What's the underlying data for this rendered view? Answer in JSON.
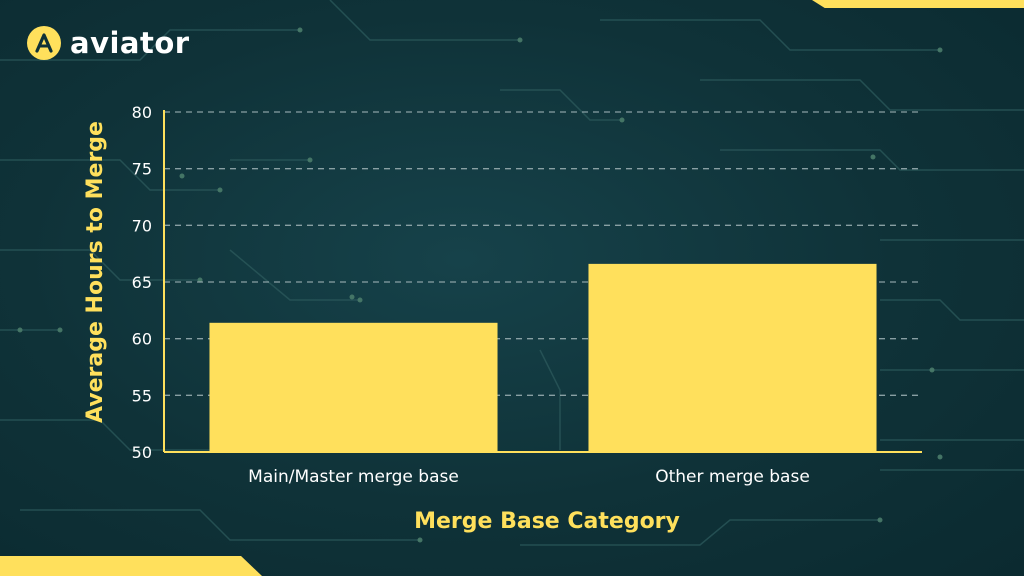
{
  "brand": {
    "name": "aviator",
    "accent": "#ffe05c",
    "background": "#0f3238"
  },
  "chart_data": {
    "type": "bar",
    "categories": [
      "Main/Master merge base",
      "Other merge base"
    ],
    "values": [
      61.4,
      66.6
    ],
    "title": "",
    "xlabel": "Merge Base Category",
    "ylabel": "Average Hours to Merge",
    "ylim": [
      50,
      80
    ],
    "yticks": [
      50,
      55,
      60,
      65,
      70,
      75,
      80
    ],
    "grid": "horizontal dashed",
    "legend": "none",
    "bar_color": "#ffe05c",
    "grid_color": "#9fb3b6"
  }
}
